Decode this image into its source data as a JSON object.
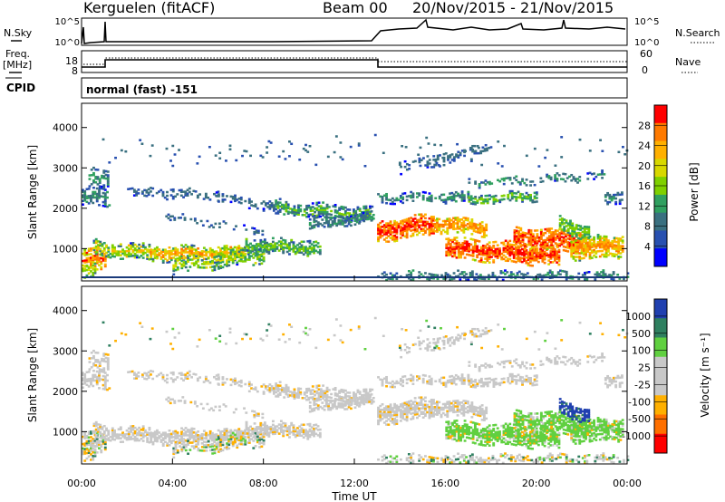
{
  "header": {
    "station": "Kerguelen (fitACF)",
    "beam": "Beam 00",
    "dates": "20/Nov/2015 - 21/Nov/2015"
  },
  "top_panels": {
    "nsky_label": "N.Sky",
    "nsky_ticks": [
      "10^5",
      "10^0"
    ],
    "nsearch_label": "N.Search",
    "nsearch_ticks": [
      "10^5",
      "10^0"
    ],
    "freq_label": "Freq.",
    "freq_unit": "[MHz]",
    "freq_ticks": [
      "18",
      "8"
    ],
    "nave_label": "Nave",
    "nave_ticks": [
      "60",
      "0"
    ],
    "cpid_label": "CPID",
    "cpid_value": "normal (fast) -151"
  },
  "chart_data": [
    {
      "type": "heatmap",
      "name": "power",
      "ylabel": "Slant Range [km]",
      "ylim": [
        200,
        4600
      ],
      "yticks": [
        "1000",
        "2000",
        "3000",
        "4000"
      ],
      "x_range_hours": [
        0,
        24
      ],
      "colorbar": {
        "label": "Power [dB]",
        "ticks": [
          "28",
          "24",
          "20",
          "16",
          "12",
          "8",
          "4"
        ],
        "colors": [
          "#ff0000",
          "#ff7a00",
          "#ffb000",
          "#d8d800",
          "#7fd000",
          "#30a060",
          "#3a7080",
          "#2850b0",
          "#0000ff"
        ]
      }
    },
    {
      "type": "heatmap",
      "name": "velocity",
      "ylabel": "Slant Range [km]",
      "xlabel": "Time UT",
      "ylim": [
        200,
        4600
      ],
      "yticks": [
        "1000",
        "2000",
        "3000",
        "4000"
      ],
      "xticks": [
        "00:00",
        "04:00",
        "08:00",
        "12:00",
        "16:00",
        "20:00",
        "00:00"
      ],
      "colorbar": {
        "label": "Velocity [m s⁻¹]",
        "ticks": [
          "1000",
          "500",
          "100",
          "25",
          "-25",
          "-100",
          "-500",
          "-1000"
        ],
        "colors": [
          "#2040b0",
          "#2f8060",
          "#60d040",
          "#c8c8c8",
          "#c8c8c8",
          "#ffb000",
          "#ff7000",
          "#ff0000"
        ]
      }
    }
  ]
}
